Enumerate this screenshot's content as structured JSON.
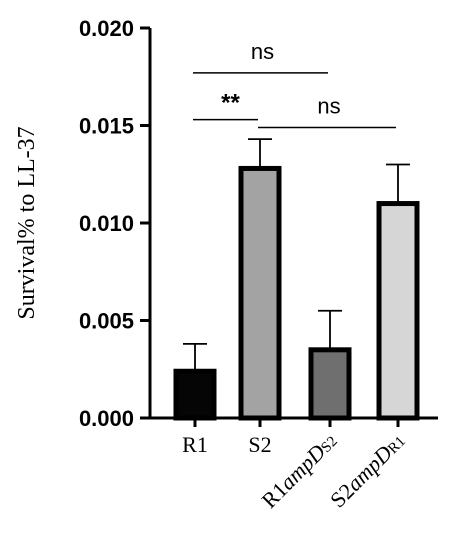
{
  "chart_data": {
    "type": "bar",
    "title": "",
    "xlabel": "",
    "ylabel": "Survival% to LL-37",
    "ylim": [
      0,
      0.02
    ],
    "yticks": [
      "0.000",
      "0.005",
      "0.010",
      "0.015",
      "0.020"
    ],
    "categories": [
      {
        "base": "R1",
        "italic": "",
        "sub": ""
      },
      {
        "base": "S2",
        "italic": "",
        "sub": ""
      },
      {
        "base": "R1",
        "italic": "ampD",
        "sub": "S2"
      },
      {
        "base": "S2",
        "italic": "ampD",
        "sub": "R1"
      }
    ],
    "values": [
      0.0025,
      0.0129,
      0.0036,
      0.0111
    ],
    "errors": [
      0.0013,
      0.0014,
      0.0019,
      0.0019
    ],
    "fill_colors": [
      "#050505",
      "#a3a3a3",
      "#6f6f6f",
      "#d6d6d6"
    ],
    "border_color": "#000000",
    "significance": [
      {
        "label": "ns",
        "from": 0,
        "to": 2,
        "y": 0.0177
      },
      {
        "label": "**",
        "from": 0,
        "to": 1,
        "y": 0.0153
      },
      {
        "label": "ns",
        "from": 1,
        "to": 3,
        "y": 0.0149
      }
    ]
  }
}
